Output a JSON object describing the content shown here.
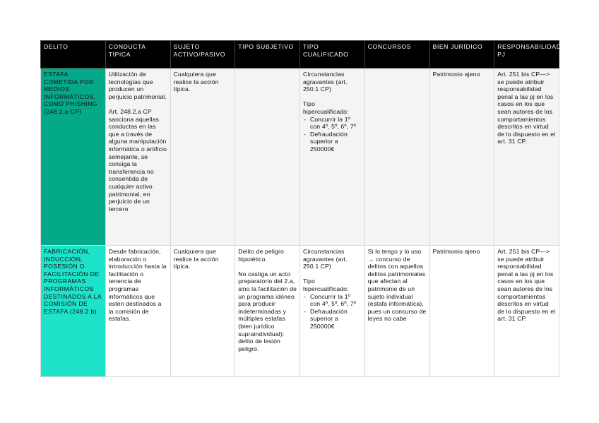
{
  "headers": [
    "DELITO",
    "CONDUCTA TÍPICA",
    "SUJETO ACTIVO/PASIVO",
    "TIPO SUBJETIVO",
    "TIPO CUALIFICADO",
    "CONCURSOS",
    "BIEN JURÍDICO",
    "RESPONSABILIDAD PJ"
  ],
  "colors": {
    "header_bg": "#000000",
    "row1_delito_bg": "#04a98a",
    "row2_delito_bg": "#1ee3cb",
    "row1_bg": "#f4f4f4"
  },
  "rows": [
    {
      "delito": "ESTAFA COMETIDA POR MEDIOS INFORMÁTICOS, COMO PHISHING (248.2.a CP)",
      "conducta": [
        "Utilización de tecnologías que producen un perjuicio patrimonial.",
        "Art. 248.2.a CP sanciona aquellas conductas en las que a través de alguna manipulación informática o artificio semejante, se consiga la transferencia no consentida de cualquier activo patrimonial, en perjuicio de un tercero"
      ],
      "sujeto": "Cualquiera que realice la acción típica.",
      "subjetivo": [],
      "cualificado": {
        "intro": "Circunstancias agravantes (art. 250.1 CP)",
        "hiper": "Tipo hipercualificado:",
        "items": [
          "Concurrir la 1º con 4º, 5º, 6º, 7º",
          "Defraudación superior a 250000€"
        ]
      },
      "concursos": "",
      "bien": "Patrimonio ajeno",
      "pj": "Art. 251 bis CP—> se puede atribuir responsabilidad penal a las pj en los casos en los que sean autores de los comportamientos descritos en virtud de lo dispuesto en el art. 31 CP."
    },
    {
      "delito": "FABRICACIÓN, INDUCCIÓN, POSESIÓN O FACILITACIÓN DE PROGRAMAS INFORMÁTICOS DESTINADOS A LA COMISIÓN DE ESTAFA (248.2.b)",
      "conducta": [
        "Desde fabricación, elaboración o introducción hasta la facilitación o tenencia de programas informáticos que estén destinados a la comisión de estafas."
      ],
      "sujeto": "Cualquiera que realice la acción típica.",
      "subjetivo": [
        "Delito de peligro hipotético.",
        "No castiga un acto preparatorio del 2.a, sino la facilitación de un programa idóneo para producir indeterminadas y múltiples estafas (bien jurídico supraindividual): delito de lesión peligro."
      ],
      "cualificado": {
        "intro": "Circunstancias agravantes (art. 250.1 CP)",
        "hiper": "Tipo hipercualificado:",
        "items": [
          "Concurrir la 1º con 4º, 5º, 6º, 7º",
          "Defraudación superior a 250000€"
        ]
      },
      "concursos": "Si lo tengo y lo uso → concurso de delitos con aquellos delitos patrimoniales que afectan al patrimonio de un sujeto individual (estafa informática), pues un concurso de leyes no cabe",
      "bien": "Patrimonio ajeno",
      "pj": "Art. 251 bis CP—> se puede atribuir responsabilidad penal a las pj en los casos en los que sean autores de los comportamientos descritos en virtud de lo dispuesto en el art. 31 CP."
    }
  ]
}
